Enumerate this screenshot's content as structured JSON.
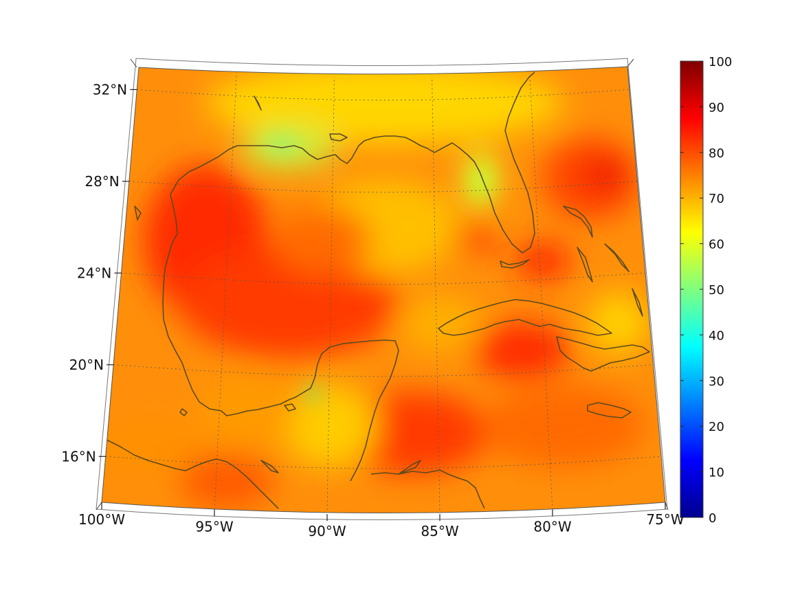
{
  "map": {
    "lat_labels": [
      "32°N",
      "28°N",
      "24°N",
      "20°N",
      "16°N"
    ],
    "lon_labels": [
      "100°W",
      "95°W",
      "90°W",
      "85°W",
      "80°W",
      "75°W"
    ],
    "lat_values": [
      32,
      28,
      24,
      20,
      16
    ],
    "lon_values": [
      -100,
      -95,
      -90,
      -85,
      -80,
      -75
    ],
    "extent": {
      "lon": [
        -100,
        -75
      ],
      "lat": [
        14,
        33
      ]
    },
    "colormap": "jet",
    "gridlines": "dotted",
    "coastline_color": "#5c4a1e"
  },
  "colorbar": {
    "ticks": [
      "0",
      "10",
      "20",
      "30",
      "40",
      "50",
      "60",
      "70",
      "80",
      "90",
      "100"
    ],
    "range": [
      0,
      100
    ],
    "colors": [
      "#00008f",
      "#0000ff",
      "#0080ff",
      "#00ffff",
      "#80ff80",
      "#ffff00",
      "#ff8000",
      "#ff0000",
      "#800000"
    ]
  },
  "chart_data": {
    "type": "heatmap",
    "title": "",
    "xlabel": "",
    "ylabel": "",
    "x_ticks": [
      "100°W",
      "95°W",
      "90°W",
      "85°W",
      "80°W",
      "75°W"
    ],
    "y_ticks": [
      "32°N",
      "28°N",
      "24°N",
      "20°N",
      "16°N"
    ],
    "value_range": [
      0,
      100
    ],
    "colorbar_ticks": [
      0,
      10,
      20,
      30,
      40,
      50,
      60,
      70,
      80,
      90,
      100
    ],
    "typical_values": {
      "gulf_interior": 85,
      "northern_gulf_coast": 65,
      "central_gulf": 72,
      "caribbean": 80,
      "bahamas_max": 90
    }
  }
}
